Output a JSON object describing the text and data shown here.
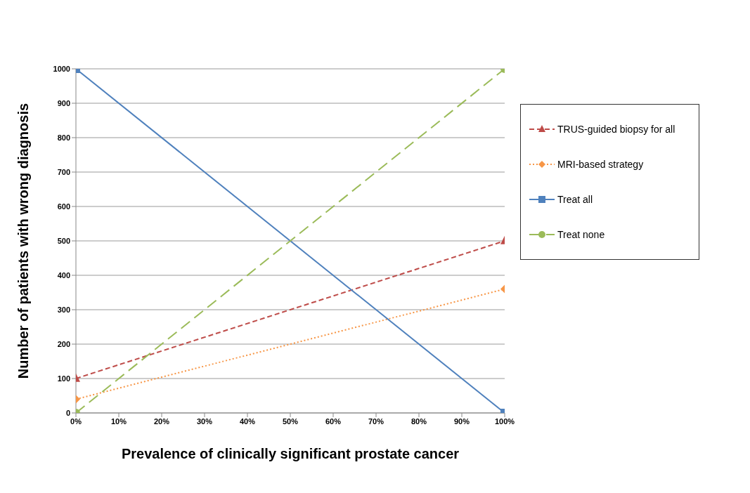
{
  "chart_data": {
    "type": "line",
    "xlabel": "Prevalence of clinically significant prostate cancer",
    "ylabel": "Number of patients with wrong diagnosis",
    "x": [
      0,
      100
    ],
    "series": [
      {
        "name": "TRUS-guided biopsy for all",
        "color": "#be4b48",
        "values": [
          100,
          500
        ],
        "marker": "triangle",
        "line_style": "dashed"
      },
      {
        "name": "MRI-based strategy",
        "color": "#f79646",
        "values": [
          40,
          360
        ],
        "marker": "diamond",
        "line_style": "dotted"
      },
      {
        "name": "Treat all",
        "color": "#4f81bd",
        "values": [
          1000,
          0
        ],
        "marker": "square",
        "line_style": "solid"
      },
      {
        "name": "Treat none",
        "color": "#9bbb59",
        "values": [
          0,
          1000
        ],
        "marker": "circle",
        "line_style": "longdash"
      }
    ],
    "xlim": [
      0,
      100
    ],
    "xticks": [
      {
        "value": 0,
        "label": "0%"
      },
      {
        "value": 10,
        "label": "10%"
      },
      {
        "value": 20,
        "label": "20%"
      },
      {
        "value": 30,
        "label": "30%"
      },
      {
        "value": 40,
        "label": "40%"
      },
      {
        "value": 50,
        "label": "50%"
      },
      {
        "value": 60,
        "label": "60%"
      },
      {
        "value": 70,
        "label": "70%"
      },
      {
        "value": 80,
        "label": "80%"
      },
      {
        "value": 90,
        "label": "90%"
      },
      {
        "value": 100,
        "label": "100%"
      }
    ],
    "ylim": [
      0,
      1000
    ],
    "yticks": [
      0,
      100,
      200,
      300,
      400,
      500,
      600,
      700,
      800,
      900,
      1000
    ],
    "grid": "y",
    "legend": "right"
  }
}
